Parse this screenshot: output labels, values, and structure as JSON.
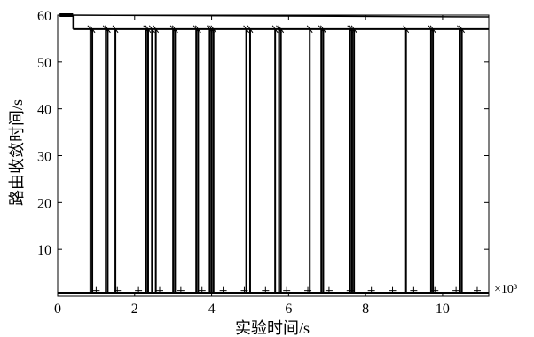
{
  "chart_data": {
    "type": "line",
    "title": "",
    "xlabel": "实验时间/s",
    "ylabel": "路由收敛时间/s",
    "x_multiplier_label": "×10³",
    "xlim": [
      0,
      11.2
    ],
    "ylim": [
      0,
      60
    ],
    "x_ticks": [
      0,
      2,
      4,
      6,
      8,
      10
    ],
    "y_ticks": [
      10,
      20,
      30,
      40,
      50,
      60
    ],
    "x_tick_labels": [
      "0",
      "2",
      "4",
      "6",
      "8",
      "10"
    ],
    "y_tick_labels": [
      "10",
      "20",
      "30",
      "40",
      "50",
      "60"
    ],
    "grid": false,
    "legend": "none",
    "series": [
      {
        "upper_level": 57,
        "start_level": 60,
        "low_level": 0.7,
        "marker_level": 1.2,
        "drop_x": [
          0.85,
          0.9,
          1.25,
          1.3,
          1.5,
          2.3,
          2.35,
          2.45,
          2.55,
          3.0,
          3.05,
          3.6,
          3.65,
          3.95,
          4.0,
          4.05,
          4.9,
          5.0,
          5.65,
          5.75,
          5.8,
          6.55,
          6.85,
          6.9,
          7.6,
          7.65,
          7.7,
          9.05,
          9.7,
          9.75,
          10.45,
          10.5
        ]
      }
    ]
  }
}
